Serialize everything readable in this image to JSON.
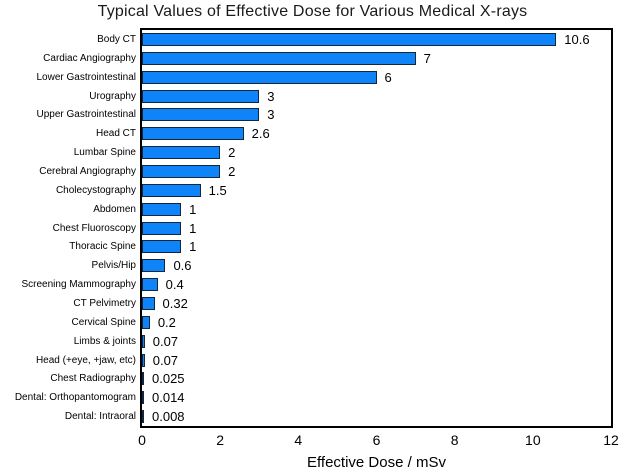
{
  "chart_data": {
    "type": "bar",
    "orientation": "horizontal",
    "title": "Typical Values of Effective Dose for Various Medical X-rays",
    "xlabel": "Effective Dose / mSv",
    "xlim": [
      0,
      12
    ],
    "x_ticks": [
      "0",
      "2",
      "4",
      "6",
      "8",
      "10",
      "12"
    ],
    "grid": false,
    "legend_position": "none",
    "categories": [
      "Body CT",
      "Cardiac Angiography",
      "Lower Gastrointestinal",
      "Urography",
      "Upper Gastrointestinal",
      "Head CT",
      "Lumbar Spine",
      "Cerebral Angiography",
      "Cholecystography",
      "Abdomen",
      "Chest Fluoroscopy",
      "Thoracic Spine",
      "Pelvis/Hip",
      "Screening Mammography",
      "CT Pelvimetry",
      "Cervical Spine",
      "Limbs & joints",
      "Head (+eye, +jaw, etc)",
      "Chest Radiography",
      "Dental: Orthopantomogram",
      "Dental: Intraoral"
    ],
    "values": [
      10.6,
      7,
      6,
      3,
      3,
      2.6,
      2,
      2,
      1.5,
      1,
      1,
      1,
      0.6,
      0.4,
      0.32,
      0.2,
      0.07,
      0.07,
      0.025,
      0.014,
      0.008
    ],
    "value_labels": [
      "10.6",
      "7",
      "6",
      "3",
      "3",
      "2.6",
      "2",
      "2",
      "1.5",
      "1",
      "1",
      "1",
      "0.6",
      "0.4",
      "0.32",
      "0.2",
      "0.07",
      "0.07",
      "0.025",
      "0.014",
      "0.008"
    ],
    "colors": {
      "bar_fill": "#0e84f8",
      "bar_border": "#10273f",
      "plot_border": "#000000",
      "text": "#000000"
    }
  }
}
